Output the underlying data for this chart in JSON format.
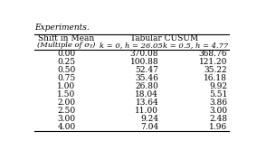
{
  "title_top": "Experiments.",
  "col1_header1": "Shift in Mean",
  "col1_header2": "(Multiple of σᵧ)",
  "col2_group_header": "Tabular CUSUM",
  "col2_header": "k = 0, h = 26.05",
  "col3_header": "k = 0.5, h = 4.77",
  "shifts": [
    "0.00",
    "0.25",
    "0.50",
    "0.75",
    "1.00",
    "1.50",
    "2.00",
    "2.50",
    "3.00",
    "4.00"
  ],
  "col2_values": [
    "370.08",
    "100.88",
    "52.47",
    "35.46",
    "26.80",
    "18.04",
    "13.64",
    "11.00",
    "9.24",
    "7.04"
  ],
  "col3_values": [
    "368.76",
    "121.20",
    "35.22",
    "16.18",
    "9.92",
    "5.51",
    "3.86",
    "3.00",
    "2.48",
    "1.96"
  ],
  "bg_color": "#ffffff",
  "text_color": "#000000",
  "line_color": "#000000",
  "font_size": 6.5,
  "header_font_size": 6.5
}
